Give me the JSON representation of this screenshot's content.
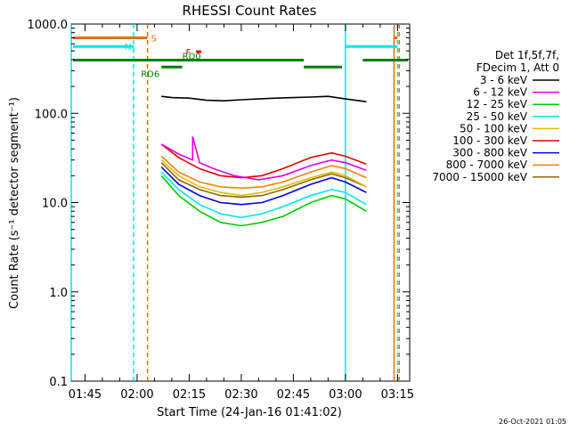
{
  "chart_data": {
    "type": "line",
    "title": "RHESSI Count Rates",
    "xlabel": "Start Time (24-Jan-16 01:41:02)",
    "ylabel": "Count Rate (s⁻¹ detector segment⁻¹)",
    "yscale": "log",
    "ylim": [
      0.1,
      1000
    ],
    "xlim": [
      "01:41:02",
      "03:18:30"
    ],
    "x_ticks": [
      "01:45",
      "02:00",
      "02:15",
      "02:30",
      "02:45",
      "03:00",
      "03:15"
    ],
    "y_ticks": [
      "0.1",
      "1.0",
      "10.0",
      "100.0",
      "1000.0"
    ],
    "legend": {
      "placement": "right",
      "header": [
        "Det 1f,5f,7f,",
        "FDecim 1, Att 0"
      ],
      "entries": [
        {
          "label": "3 - 6 keV",
          "color": "#000000"
        },
        {
          "label": "6 - 12 keV",
          "color": "#e600e6"
        },
        {
          "label": "12 - 25 keV",
          "color": "#00cc00"
        },
        {
          "label": "25 - 50 keV",
          "color": "#00e6e6"
        },
        {
          "label": "50 - 100 keV",
          "color": "#e6b800"
        },
        {
          "label": "100 - 300 keV",
          "color": "#e60000"
        },
        {
          "label": "300 - 800 keV",
          "color": "#0000e6"
        },
        {
          "label": "800 - 7000 keV",
          "color": "#ff8000"
        },
        {
          "label": "7000 - 15000 keV",
          "color": "#8c6a00"
        }
      ]
    },
    "series": [
      {
        "name": "3 - 6 keV",
        "x": [
          "02:07",
          "02:10",
          "02:15",
          "02:20",
          "02:25",
          "02:30",
          "02:35",
          "02:40",
          "02:45",
          "02:50",
          "02:55",
          "03:00",
          "03:06"
        ],
        "y": [
          155,
          150,
          148,
          140,
          138,
          142,
          145,
          148,
          150,
          152,
          155,
          145,
          135
        ]
      },
      {
        "name": "6 - 12 keV",
        "x": [
          "02:07",
          "02:12",
          "02:16",
          "02:16",
          "02:18",
          "02:22",
          "02:28",
          "02:35",
          "02:42",
          "02:50",
          "02:56",
          "03:00",
          "03:06"
        ],
        "y": [
          45,
          35,
          30,
          55,
          28,
          24,
          20,
          18,
          20,
          26,
          30,
          28,
          23
        ]
      },
      {
        "name": "12 - 25 keV",
        "x": [
          "02:07",
          "02:12",
          "02:18",
          "02:24",
          "02:30",
          "02:36",
          "02:42",
          "02:50",
          "02:56",
          "03:00",
          "03:06"
        ],
        "y": [
          20,
          12,
          8,
          6,
          5.5,
          6,
          7,
          10,
          12,
          11,
          8
        ]
      },
      {
        "name": "25 - 50 keV",
        "x": [
          "02:07",
          "02:12",
          "02:18",
          "02:24",
          "02:30",
          "02:36",
          "02:42",
          "02:50",
          "02:56",
          "03:00",
          "03:06"
        ],
        "y": [
          22,
          14,
          9.5,
          7.5,
          6.8,
          7.5,
          9,
          12,
          14,
          13,
          9.5
        ]
      },
      {
        "name": "50 - 100 keV",
        "x": [
          "02:07",
          "02:12",
          "02:18",
          "02:24",
          "02:30",
          "02:36",
          "02:42",
          "02:50",
          "02:56",
          "03:00",
          "03:06"
        ],
        "y": [
          30,
          20,
          15,
          13,
          12,
          13,
          15,
          19,
          22,
          20,
          15
        ]
      },
      {
        "name": "100 - 300 keV",
        "x": [
          "02:07",
          "02:12",
          "02:18",
          "02:24",
          "02:30",
          "02:36",
          "02:42",
          "02:50",
          "02:56",
          "03:00",
          "03:06"
        ],
        "y": [
          45,
          32,
          24,
          20,
          19,
          20,
          24,
          32,
          36,
          33,
          27
        ]
      },
      {
        "name": "300 - 800 keV",
        "x": [
          "02:07",
          "02:12",
          "02:18",
          "02:24",
          "02:30",
          "02:36",
          "02:42",
          "02:50",
          "02:56",
          "03:00",
          "03:06"
        ],
        "y": [
          25,
          16,
          12,
          10,
          9.5,
          10,
          12,
          16,
          19,
          17,
          13
        ]
      },
      {
        "name": "800 - 7000 keV",
        "x": [
          "02:07",
          "02:12",
          "02:18",
          "02:24",
          "02:30",
          "02:36",
          "02:42",
          "02:50",
          "02:56",
          "03:00",
          "03:06"
        ],
        "y": [
          33,
          22,
          17,
          15,
          14.5,
          15,
          17,
          22,
          26,
          24,
          19
        ]
      },
      {
        "name": "7000 - 15000 keV",
        "x": [
          "02:07",
          "02:12",
          "02:18",
          "02:24",
          "02:30",
          "02:36",
          "02:42",
          "02:50",
          "02:56",
          "03:00",
          "03:06"
        ],
        "y": [
          28,
          18,
          14,
          12,
          11.5,
          12,
          14,
          18,
          21,
          19,
          15
        ]
      }
    ],
    "state_bars": [
      {
        "label": "S",
        "color": "#e07000",
        "level": 700,
        "segments": [
          [
            "01:41:02",
            "02:03"
          ],
          [
            "03:14",
            "03:15"
          ]
        ]
      },
      {
        "label": "N",
        "color": "#00e6e6",
        "level": 560,
        "segments": [
          [
            "01:41:02",
            "01:59"
          ],
          [
            "03:00",
            "03:15"
          ]
        ]
      },
      {
        "label": "F",
        "color": "#e60000",
        "level": 490,
        "segments": [
          [
            "02:17",
            "02:18:30"
          ]
        ]
      },
      {
        "label": "RD0",
        "color": "#008000",
        "level": 395,
        "segments": [
          [
            "01:41:02",
            "02:48"
          ],
          [
            "03:05",
            "03:18:30"
          ]
        ]
      },
      {
        "label": "RD6",
        "color": "#008000",
        "level": 330,
        "segments": [
          [
            "02:07",
            "02:13"
          ],
          [
            "02:48",
            "02:59"
          ]
        ]
      }
    ],
    "vertical_lines": [
      {
        "x": "01:41:02",
        "color": "#00e6e6",
        "style": "solid"
      },
      {
        "x": "01:59",
        "color": "#00e6e6",
        "style": "dashed"
      },
      {
        "x": "02:03",
        "color": "#e07000",
        "style": "dashed"
      },
      {
        "x": "03:00",
        "color": "#00e6e6",
        "style": "solid"
      },
      {
        "x": "03:14",
        "color": "#e07000",
        "style": "solid"
      },
      {
        "x": "03:15",
        "color": "#00e6e6",
        "style": "dashed"
      },
      {
        "x": "03:15:30",
        "color": "#e07000",
        "style": "dashed"
      }
    ],
    "date_stamp": "26-Oct-2021 01:05"
  }
}
